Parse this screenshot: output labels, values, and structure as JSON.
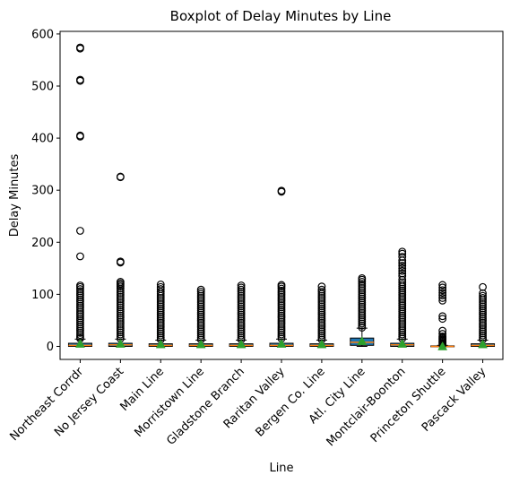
{
  "chart_data": {
    "type": "boxplot",
    "title": "Boxplot of Delay Minutes by Line",
    "xlabel": "Line",
    "ylabel": "Delay Minutes",
    "ylim": [
      -25,
      605
    ],
    "yticks": [
      0,
      100,
      200,
      300,
      400,
      500,
      600
    ],
    "grid": false,
    "colors": {
      "box_fill": "#1f77b4",
      "median": "#ff7f0e",
      "mean_marker": "#2ca02c",
      "outlier_edge": "#000000"
    },
    "categories": [
      "Northeast Corrdr",
      "No Jersey Coast",
      "Main Line",
      "Morristown Line",
      "Gladstone Branch",
      "Raritan Valley",
      "Bergen Co. Line",
      "Atl. City Line",
      "Montclair-Boonton",
      "Princeton Shuttle",
      "Pascack Valley"
    ],
    "boxes": [
      {
        "q1": 0,
        "median": 2,
        "q3": 6,
        "whisker_low": 0,
        "whisker_high": 14,
        "mean": 5,
        "outliers": [
          15,
          18,
          22,
          26,
          30,
          34,
          38,
          42,
          46,
          50,
          54,
          58,
          62,
          66,
          70,
          74,
          78,
          82,
          86,
          90,
          94,
          98,
          102,
          106,
          110,
          114,
          117,
          173,
          222,
          403,
          405,
          510,
          512,
          572,
          574
        ]
      },
      {
        "q1": 0,
        "median": 3,
        "q3": 6,
        "whisker_low": 0,
        "whisker_high": 14,
        "mean": 5,
        "outliers": [
          15,
          19,
          23,
          27,
          31,
          35,
          39,
          43,
          47,
          51,
          55,
          59,
          63,
          67,
          71,
          75,
          79,
          83,
          87,
          91,
          95,
          99,
          103,
          107,
          111,
          115,
          118,
          121,
          124,
          161,
          163,
          325,
          326
        ]
      },
      {
        "q1": 0,
        "median": 2,
        "q3": 5,
        "whisker_low": 0,
        "whisker_high": 12,
        "mean": 4,
        "outliers": [
          13,
          17,
          21,
          25,
          29,
          33,
          37,
          41,
          45,
          49,
          53,
          57,
          61,
          65,
          69,
          73,
          77,
          81,
          85,
          89,
          93,
          97,
          101,
          105,
          110,
          114,
          119
        ]
      },
      {
        "q1": 0,
        "median": 2,
        "q3": 5,
        "whisker_low": 0,
        "whisker_high": 12,
        "mean": 4,
        "outliers": [
          13,
          17,
          21,
          25,
          29,
          33,
          37,
          41,
          45,
          49,
          53,
          57,
          61,
          65,
          69,
          73,
          77,
          81,
          85,
          89,
          93,
          97,
          101,
          105,
          109
        ]
      },
      {
        "q1": 0,
        "median": 2,
        "q3": 5,
        "whisker_low": 0,
        "whisker_high": 12,
        "mean": 4,
        "outliers": [
          13,
          17,
          21,
          25,
          29,
          33,
          37,
          41,
          45,
          49,
          53,
          57,
          61,
          65,
          69,
          73,
          77,
          81,
          85,
          89,
          93,
          97,
          101,
          105,
          109,
          113,
          117
        ]
      },
      {
        "q1": 0,
        "median": 2,
        "q3": 6,
        "whisker_low": 0,
        "whisker_high": 14,
        "mean": 5,
        "outliers": [
          15,
          19,
          23,
          27,
          31,
          35,
          39,
          43,
          47,
          51,
          55,
          59,
          63,
          67,
          71,
          75,
          79,
          83,
          87,
          91,
          95,
          99,
          103,
          107,
          111,
          115,
          118,
          297,
          299
        ]
      },
      {
        "q1": 0,
        "median": 2,
        "q3": 5,
        "whisker_low": 0,
        "whisker_high": 12,
        "mean": 4,
        "outliers": [
          13,
          17,
          21,
          25,
          29,
          33,
          37,
          41,
          45,
          49,
          53,
          57,
          61,
          65,
          69,
          73,
          77,
          81,
          85,
          89,
          93,
          97,
          101,
          105,
          109,
          115
        ]
      },
      {
        "q1": 2,
        "median": 8,
        "q3": 16,
        "whisker_low": 0,
        "whisker_high": 35,
        "mean": 10,
        "outliers": [
          36,
          40,
          44,
          48,
          52,
          56,
          60,
          64,
          68,
          72,
          76,
          80,
          84,
          88,
          92,
          96,
          100,
          104,
          108,
          112,
          116,
          120,
          124,
          128,
          131
        ]
      },
      {
        "q1": 0,
        "median": 3,
        "q3": 6,
        "whisker_low": 0,
        "whisker_high": 14,
        "mean": 5,
        "outliers": [
          15,
          19,
          23,
          27,
          31,
          35,
          39,
          43,
          47,
          51,
          55,
          59,
          63,
          67,
          71,
          75,
          79,
          83,
          87,
          91,
          95,
          99,
          103,
          107,
          111,
          115,
          119,
          123,
          128,
          135,
          140,
          145,
          150,
          155,
          160,
          165,
          172,
          178,
          182
        ]
      },
      {
        "q1": 0,
        "median": 0,
        "q3": 1,
        "whisker_low": 0,
        "whisker_high": 2,
        "mean": 0,
        "outliers": [
          3,
          5,
          7,
          9,
          11,
          13,
          15,
          17,
          19,
          24,
          30,
          53,
          58,
          88,
          93,
          98,
          103,
          108,
          113,
          118
        ]
      },
      {
        "q1": 0,
        "median": 2,
        "q3": 5,
        "whisker_low": 0,
        "whisker_high": 12,
        "mean": 4,
        "outliers": [
          13,
          17,
          21,
          25,
          29,
          33,
          37,
          41,
          45,
          49,
          53,
          57,
          61,
          65,
          69,
          73,
          77,
          81,
          85,
          89,
          93,
          97,
          102,
          114
        ]
      }
    ]
  }
}
